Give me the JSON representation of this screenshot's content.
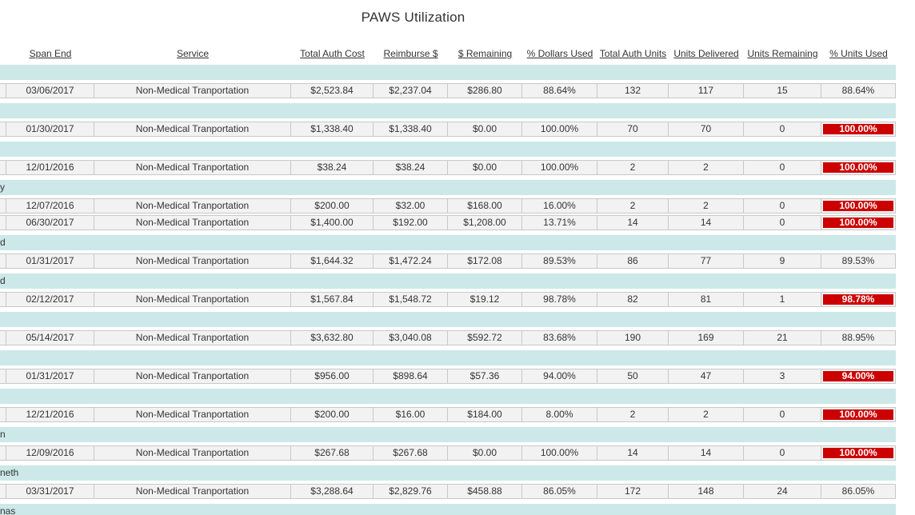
{
  "title": "PAWS Utilization",
  "service_label": "Non-Medical Tranportation",
  "colors": {
    "group_row_bg": "#cde8e8",
    "data_cell_bg": "#f2f2f2",
    "data_cell_border": "#c8c8c8",
    "highlight_bg": "#cc0000",
    "highlight_text": "#ffffff",
    "text": "#333333"
  },
  "table": {
    "headers": [
      {
        "label": "Span End"
      },
      {
        "label": "Service"
      },
      {
        "label": "Total Auth Cost"
      },
      {
        "label": "Reimburse $"
      },
      {
        "label": "$ Remaining"
      },
      {
        "label": "% Dollars Used"
      },
      {
        "label": "Total Auth Units"
      },
      {
        "label": "Units Delivered"
      },
      {
        "label": "Units Remaining"
      },
      {
        "label": "% Units Used"
      }
    ],
    "groups": [
      {
        "name_fragment": "",
        "rows": [
          {
            "cells": [
              "03/06/2017",
              "Non-Medical Tranportation",
              "$2,523.84",
              "$2,237.04",
              "$286.80",
              "88.64%",
              "132",
              "117",
              "15",
              "88.64%"
            ],
            "highlight": false
          }
        ]
      },
      {
        "name_fragment": "",
        "rows": [
          {
            "cells": [
              "01/30/2017",
              "Non-Medical Tranportation",
              "$1,338.40",
              "$1,338.40",
              "$0.00",
              "100.00%",
              "70",
              "70",
              "0",
              "100.00%"
            ],
            "highlight": true
          }
        ]
      },
      {
        "name_fragment": "",
        "rows": [
          {
            "cells": [
              "12/01/2016",
              "Non-Medical Tranportation",
              "$38.24",
              "$38.24",
              "$0.00",
              "100.00%",
              "2",
              "2",
              "0",
              "100.00%"
            ],
            "highlight": true
          }
        ]
      },
      {
        "name_fragment": "y",
        "rows": [
          {
            "cells": [
              "12/07/2016",
              "Non-Medical Tranportation",
              "$200.00",
              "$32.00",
              "$168.00",
              "16.00%",
              "2",
              "2",
              "0",
              "100.00%"
            ],
            "highlight": true
          },
          {
            "cells": [
              "06/30/2017",
              "Non-Medical Tranportation",
              "$1,400.00",
              "$192.00",
              "$1,208.00",
              "13.71%",
              "14",
              "14",
              "0",
              "100.00%"
            ],
            "highlight": true
          }
        ]
      },
      {
        "name_fragment": "d",
        "rows": [
          {
            "cells": [
              "01/31/2017",
              "Non-Medical Tranportation",
              "$1,644.32",
              "$1,472.24",
              "$172.08",
              "89.53%",
              "86",
              "77",
              "9",
              "89.53%"
            ],
            "highlight": false
          }
        ]
      },
      {
        "name_fragment": "d",
        "rows": [
          {
            "cells": [
              "02/12/2017",
              "Non-Medical Tranportation",
              "$1,567.84",
              "$1,548.72",
              "$19.12",
              "98.78%",
              "82",
              "81",
              "1",
              "98.78%"
            ],
            "highlight": true
          }
        ]
      },
      {
        "name_fragment": "",
        "rows": [
          {
            "cells": [
              "05/14/2017",
              "Non-Medical Tranportation",
              "$3,632.80",
              "$3,040.08",
              "$592.72",
              "83.68%",
              "190",
              "169",
              "21",
              "88.95%"
            ],
            "highlight": false
          }
        ]
      },
      {
        "name_fragment": "",
        "rows": [
          {
            "cells": [
              "01/31/2017",
              "Non-Medical Tranportation",
              "$956.00",
              "$898.64",
              "$57.36",
              "94.00%",
              "50",
              "47",
              "3",
              "94.00%"
            ],
            "highlight": true
          }
        ]
      },
      {
        "name_fragment": "",
        "rows": [
          {
            "cells": [
              "12/21/2016",
              "Non-Medical Tranportation",
              "$200.00",
              "$16.00",
              "$184.00",
              "8.00%",
              "2",
              "2",
              "0",
              "100.00%"
            ],
            "highlight": true
          }
        ]
      },
      {
        "name_fragment": "n",
        "rows": [
          {
            "cells": [
              "12/09/2016",
              "Non-Medical Tranportation",
              "$267.68",
              "$267.68",
              "$0.00",
              "100.00%",
              "14",
              "14",
              "0",
              "100.00%"
            ],
            "highlight": true
          }
        ]
      },
      {
        "name_fragment": "neth",
        "rows": [
          {
            "cells": [
              "03/31/2017",
              "Non-Medical Tranportation",
              "$3,288.64",
              "$2,829.76",
              "$458.88",
              "86.05%",
              "172",
              "148",
              "24",
              "86.05%"
            ],
            "highlight": false
          }
        ]
      },
      {
        "name_fragment": "nas",
        "rows": []
      }
    ]
  }
}
